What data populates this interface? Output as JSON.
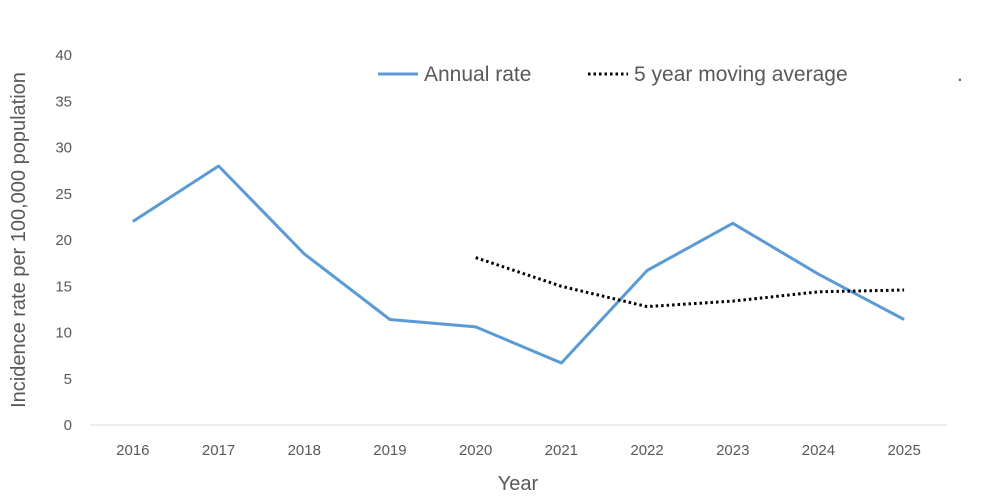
{
  "chart_data": {
    "type": "line",
    "title": "",
    "xlabel": "Year",
    "ylabel": "Incidence rate per 100,000 population",
    "categories": [
      "2016",
      "2017",
      "2018",
      "2019",
      "2020",
      "2021",
      "2022",
      "2023",
      "2024",
      "2025"
    ],
    "ylim": [
      0,
      40
    ],
    "yticks": [
      0,
      5,
      10,
      15,
      20,
      25,
      30,
      35,
      40
    ],
    "grid": false,
    "legend_position": "top",
    "legend_note": ".",
    "series": [
      {
        "name": "Annual rate",
        "style": "solid",
        "color": "#5b9bd5",
        "values": [
          22.0,
          28.0,
          18.5,
          11.4,
          10.6,
          6.7,
          16.7,
          21.8,
          16.3,
          11.4
        ]
      },
      {
        "name": "5 year moving average",
        "style": "dotted",
        "color": "#000000",
        "values": [
          null,
          null,
          null,
          null,
          18.1,
          15.0,
          12.8,
          13.4,
          14.4,
          14.6
        ]
      }
    ]
  }
}
